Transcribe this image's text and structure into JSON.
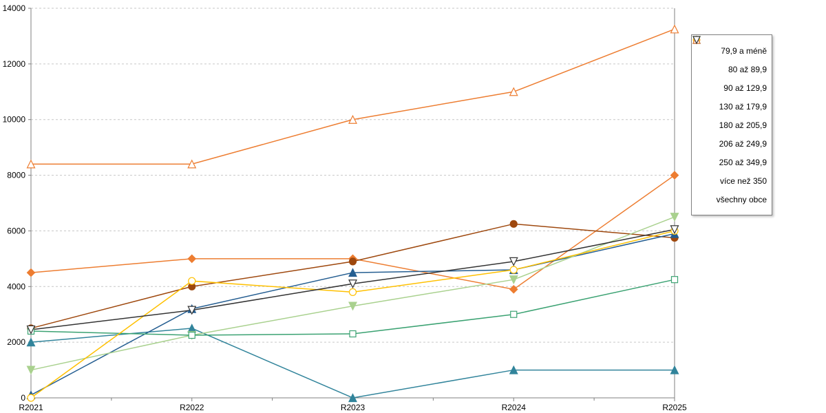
{
  "chart_data": {
    "type": "line",
    "categories": [
      "R2021",
      "R2022",
      "R2023",
      "R2024",
      "R2025"
    ],
    "series": [
      {
        "name": "79,9 a méně",
        "color": "#ED7D31",
        "marker": "diamond",
        "values": [
          4500,
          5000,
          5000,
          3900,
          8000
        ]
      },
      {
        "name": "80 až 89,9",
        "color": "#9E480E",
        "marker": "circle",
        "values": [
          2500,
          4000,
          4900,
          6250,
          5750
        ]
      },
      {
        "name": "90 až 129,9",
        "color": "#31849B",
        "marker": "triangle",
        "values": [
          2000,
          2500,
          0,
          1000,
          1000
        ]
      },
      {
        "name": "130 až 179,9",
        "color": "#255E91",
        "marker": "triangle",
        "values": [
          100,
          3200,
          4500,
          4600,
          5900
        ]
      },
      {
        "name": "180 až 205,9",
        "color": "#A9D18E",
        "marker": "triangle-down",
        "values": [
          1000,
          2250,
          3300,
          4250,
          6500
        ]
      },
      {
        "name": "206 až 249,9",
        "color": "#3BA272",
        "marker": "square-open",
        "values": [
          2400,
          2250,
          2300,
          3000,
          4250
        ]
      },
      {
        "name": "250 až 349,9",
        "color": "#FFC000",
        "marker": "circle-open",
        "values": [
          0,
          4200,
          3800,
          4600,
          6000
        ]
      },
      {
        "name": "více než 350",
        "color": "#ED7D31",
        "marker": "triangle-open",
        "values": [
          8400,
          8400,
          10000,
          11000,
          13250
        ]
      },
      {
        "name": "všechny obce",
        "color": "#333333",
        "marker": "triangle-down-open",
        "values": [
          2450,
          3150,
          4100,
          4900,
          6050
        ]
      }
    ],
    "yticks": [
      0,
      2000,
      4000,
      6000,
      8000,
      10000,
      12000,
      14000
    ],
    "ylim": [
      0,
      14000
    ],
    "grid": true,
    "legend_position": "right",
    "axis_color": "#7f7f7f",
    "grid_color": "#c6c6c6"
  }
}
